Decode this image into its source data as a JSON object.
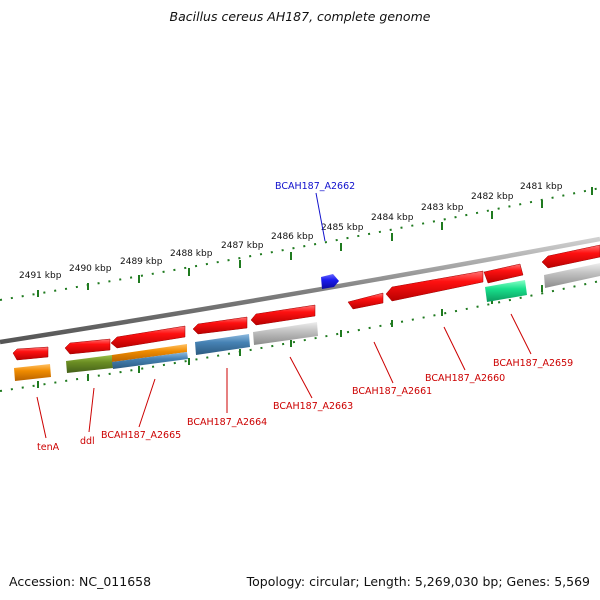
{
  "title": "Bacillus cereus AH187, complete genome",
  "footer": {
    "accession": "Accession: NC_011658",
    "info": "Topology: circular; Length: 5,269,030 bp; Genes: 5,569"
  },
  "colors": {
    "backbone": "#8c8c8c",
    "tick": "#1f7a1f",
    "gene_label": "#cc0000",
    "highlight_label": "#1010cc",
    "gene_red": "#ee1111",
    "orange": "#f08c00",
    "olive": "#6b8e23",
    "steelblue": "#4682b4",
    "silver": "#bdbdbd",
    "seagreen": "#19e08c",
    "blue": "#1a1aee"
  },
  "ticks": {
    "kbp_labels": [
      "2481 kbp",
      "2482 kbp",
      "2483 kbp",
      "2484 kbp",
      "2485 kbp",
      "2486 kbp",
      "2487 kbp",
      "2488 kbp",
      "2489 kbp",
      "2490 kbp",
      "2491 kbp"
    ]
  },
  "gene_labels": {
    "tenA": "tenA",
    "ddl": "ddl",
    "a2665": "BCAH187_A2665",
    "a2664": "BCAH187_A2664",
    "a2663": "BCAH187_A2663",
    "a2661": "BCAH187_A2661",
    "a2660": "BCAH187_A2660",
    "a2659": "BCAH187_A2659",
    "a2662": "BCAH187_A2662"
  }
}
